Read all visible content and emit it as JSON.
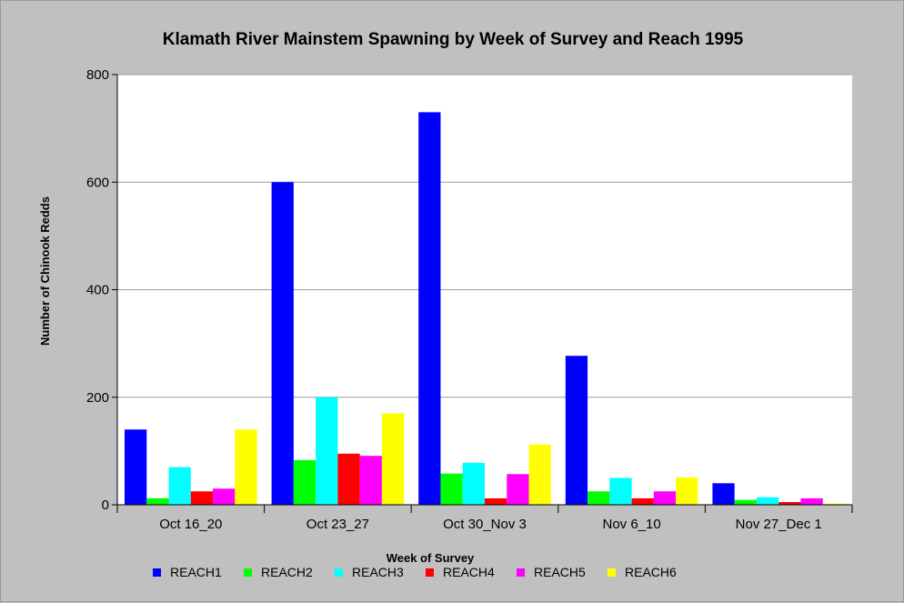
{
  "chart_data": {
    "type": "bar",
    "title": "Klamath River Mainstem Spawning by Week of Survey and Reach 1995",
    "xlabel": "Week of Survey",
    "ylabel": "Number of Chinook Redds",
    "ylim": [
      0,
      800
    ],
    "yticks": [
      0,
      200,
      400,
      600,
      800
    ],
    "grid": true,
    "legend_position": "bottom",
    "categories": [
      "Oct 16_20",
      "Oct 23_27",
      "Oct 30_Nov 3",
      "Nov 6_10",
      "Nov 27_Dec 1"
    ],
    "series": [
      {
        "name": "REACH1",
        "color": "#0000ff",
        "values": [
          140,
          600,
          730,
          277,
          40
        ]
      },
      {
        "name": "REACH2",
        "color": "#00ff00",
        "values": [
          12,
          83,
          58,
          25,
          9
        ]
      },
      {
        "name": "REACH3",
        "color": "#00ffff",
        "values": [
          70,
          200,
          78,
          50,
          14
        ]
      },
      {
        "name": "REACH4",
        "color": "#ff0000",
        "values": [
          25,
          95,
          12,
          12,
          5
        ]
      },
      {
        "name": "REACH5",
        "color": "#ff00ff",
        "values": [
          30,
          91,
          57,
          25,
          12
        ]
      },
      {
        "name": "REACH6",
        "color": "#ffff00",
        "values": [
          140,
          170,
          112,
          51,
          2
        ]
      }
    ]
  }
}
